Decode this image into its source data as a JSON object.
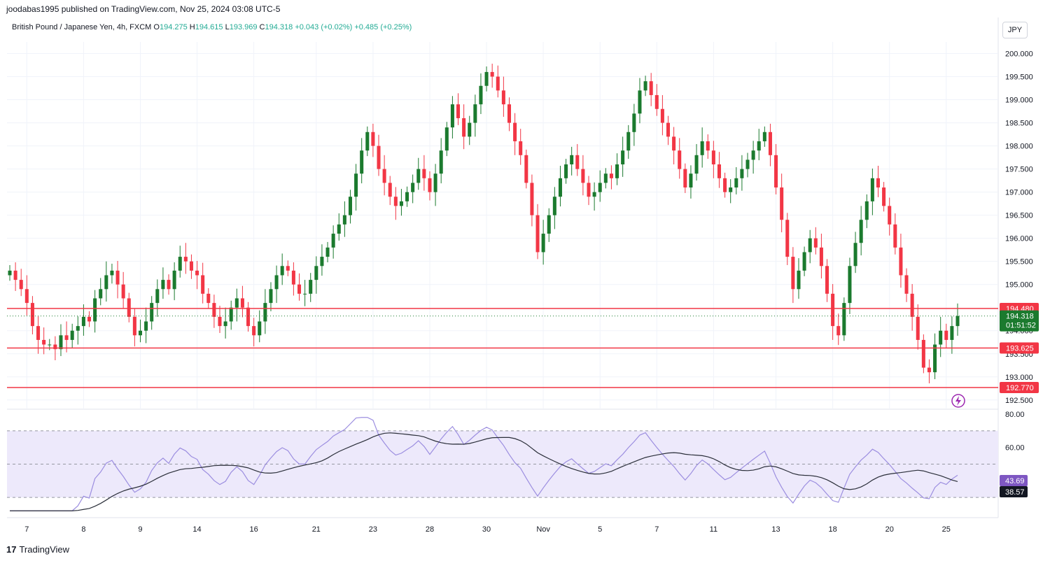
{
  "header": {
    "publisher": "joodabas1995 published on TradingView.com, Nov 25, 2024 03:08 UTC-5"
  },
  "ohlc": {
    "symbol": "British Pound / Japanese Yen, 4h, FXCM",
    "o_label": "O",
    "o": "194.275",
    "h_label": "H",
    "h": "194.615",
    "l_label": "L",
    "l": "193.969",
    "c_label": "C",
    "c": "194.318",
    "change": "+0.043 (+0.02%)",
    "change2": "+0.485 (+0.25%)"
  },
  "currency": "JPY",
  "footer": {
    "brand": "TradingView",
    "logo": "17"
  },
  "colors": {
    "up": "#26a69a",
    "down": "#f23645",
    "upBody": "#1b7a2e",
    "hline": "#f23645",
    "rsi": "#9c8ee0",
    "rsiBand": "#ede9fb"
  },
  "chart_data": [
    {
      "type": "candlestick",
      "title": "British Pound / Japanese Yen, 4h, FXCM",
      "ylim": [
        192.3,
        200.25
      ],
      "y_ticks": [
        "200.000",
        "199.500",
        "199.000",
        "198.500",
        "198.000",
        "197.500",
        "197.000",
        "196.500",
        "196.000",
        "195.500",
        "195.000",
        "194.000",
        "193.500",
        "193.000",
        "192.500"
      ],
      "x_ticks": [
        "7",
        "8",
        "9",
        "14",
        "16",
        "21",
        "23",
        "28",
        "30",
        "Nov",
        "5",
        "7",
        "11",
        "13",
        "18",
        "20",
        "25"
      ],
      "horizontal_lines": [
        194.48,
        193.625,
        192.77
      ],
      "price_tags": [
        {
          "value": "194.480",
          "kind": "line"
        },
        {
          "value": "194.318",
          "sub": "01:51:52",
          "kind": "last"
        },
        {
          "value": "193.625",
          "kind": "line"
        },
        {
          "value": "192.770",
          "kind": "line"
        }
      ],
      "last_price": 194.318,
      "closes": [
        195.3,
        195.1,
        194.9,
        194.6,
        194.1,
        193.8,
        193.7,
        193.7,
        193.6,
        193.9,
        193.8,
        194.0,
        194.1,
        194.3,
        194.2,
        194.7,
        194.9,
        195.2,
        195.3,
        195.0,
        194.7,
        194.3,
        193.9,
        194.0,
        194.2,
        194.6,
        194.9,
        195.1,
        194.9,
        195.3,
        195.6,
        195.5,
        195.3,
        195.2,
        194.8,
        194.6,
        194.3,
        194.1,
        194.2,
        194.5,
        194.7,
        194.5,
        194.1,
        193.9,
        194.2,
        194.6,
        194.9,
        195.2,
        195.4,
        195.3,
        195.0,
        194.8,
        194.8,
        195.1,
        195.4,
        195.6,
        195.8,
        196.1,
        196.3,
        196.5,
        196.9,
        197.4,
        197.9,
        198.3,
        198.0,
        197.5,
        197.2,
        196.9,
        196.7,
        196.8,
        197.0,
        197.2,
        197.5,
        197.3,
        197.0,
        197.4,
        197.9,
        198.4,
        198.9,
        198.6,
        198.2,
        198.5,
        198.9,
        199.3,
        199.6,
        199.5,
        199.2,
        198.9,
        198.5,
        198.1,
        197.8,
        197.2,
        196.5,
        195.7,
        196.1,
        196.5,
        196.9,
        197.3,
        197.6,
        197.8,
        197.5,
        197.2,
        196.9,
        197.0,
        197.2,
        197.4,
        197.3,
        197.6,
        197.9,
        198.3,
        198.7,
        199.2,
        199.4,
        199.1,
        198.8,
        198.5,
        198.2,
        197.9,
        197.5,
        197.1,
        197.4,
        197.8,
        198.1,
        197.9,
        197.6,
        197.3,
        197.0,
        197.1,
        197.3,
        197.5,
        197.7,
        197.9,
        198.1,
        198.3,
        197.8,
        197.1,
        196.4,
        195.6,
        194.9,
        195.3,
        195.7,
        196.0,
        195.8,
        195.4,
        194.8,
        194.1,
        193.9,
        194.6,
        195.4,
        195.9,
        196.4,
        196.8,
        197.3,
        197.1,
        196.7,
        196.3,
        195.8,
        195.2,
        194.8,
        194.3,
        193.8,
        193.2,
        193.1,
        193.7,
        194.0,
        193.8,
        194.1,
        194.318
      ],
      "rsi": {
        "label_value": "43.69",
        "ma_value": "38.57",
        "y_ticks": [
          "80.00",
          "60.00"
        ],
        "ylim": [
          20,
          80
        ],
        "band": [
          30,
          70
        ],
        "midline": 50
      }
    }
  ]
}
